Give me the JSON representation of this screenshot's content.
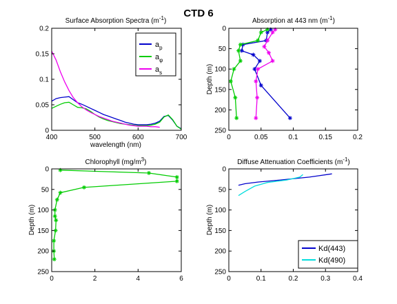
{
  "figure_title": "CTD 6",
  "chart_data": [
    {
      "type": "line",
      "title": "Surface Absorption Spectra (m⁻¹)",
      "xlabel": "wavelength (nm)",
      "ylabel": "",
      "xlim": [
        400,
        700
      ],
      "ylim": [
        0,
        0.2
      ],
      "x_ticks": [
        400,
        500,
        600,
        700
      ],
      "x_tick_labels": [
        "400",
        "500",
        "600",
        "700"
      ],
      "y_ticks": [
        0,
        0.05,
        0.1,
        0.15,
        0.2
      ],
      "y_tick_labels": [
        "0",
        "0.05",
        "0.1",
        "0.15",
        "0.2"
      ],
      "y_reversed": false,
      "legend_position": "top-right",
      "series": [
        {
          "name": "aₚ",
          "color": "#0000cc",
          "markers": false,
          "x": [
            400,
            410,
            420,
            430,
            440,
            450,
            460,
            470,
            480,
            490,
            500,
            510,
            520,
            530,
            540,
            550,
            560,
            570,
            580,
            590,
            600,
            610,
            620,
            630,
            640,
            650,
            660,
            670,
            680,
            690,
            700
          ],
          "y": [
            0.057,
            0.062,
            0.064,
            0.065,
            0.066,
            0.06,
            0.054,
            0.051,
            0.047,
            0.043,
            0.039,
            0.035,
            0.031,
            0.028,
            0.025,
            0.022,
            0.019,
            0.016,
            0.014,
            0.012,
            0.011,
            0.011,
            0.011,
            0.012,
            0.014,
            0.018,
            0.027,
            0.029,
            0.02,
            0.008,
            0.003
          ]
        },
        {
          "name": "aᵩ",
          "color": "#00cc00",
          "markers": false,
          "x": [
            400,
            410,
            420,
            430,
            440,
            450,
            460,
            470,
            480,
            490,
            500,
            510,
            520,
            530,
            540,
            550,
            560,
            570,
            580,
            590,
            600,
            610,
            620,
            630,
            640,
            650,
            660,
            670,
            680,
            690,
            700
          ],
          "y": [
            0.043,
            0.047,
            0.051,
            0.054,
            0.055,
            0.05,
            0.045,
            0.044,
            0.042,
            0.037,
            0.031,
            0.026,
            0.022,
            0.019,
            0.017,
            0.015,
            0.013,
            0.012,
            0.011,
            0.01,
            0.009,
            0.009,
            0.009,
            0.01,
            0.012,
            0.016,
            0.026,
            0.03,
            0.021,
            0.008,
            0.002
          ]
        },
        {
          "name": "aₛ",
          "color": "#ee00ee",
          "markers": false,
          "x": [
            400,
            410,
            420,
            430,
            440,
            450,
            460,
            470,
            480,
            490,
            500,
            510,
            520,
            530,
            540,
            550,
            560,
            570,
            580,
            590,
            600,
            610,
            620,
            630,
            640,
            650
          ],
          "y": [
            0.155,
            0.138,
            0.115,
            0.095,
            0.078,
            0.064,
            0.054,
            0.046,
            0.04,
            0.035,
            0.031,
            0.027,
            0.024,
            0.021,
            0.018,
            0.016,
            0.014,
            0.012,
            0.01,
            0.009,
            0.008,
            0.008,
            0.008,
            0.007,
            0.007,
            0.006
          ]
        }
      ]
    },
    {
      "type": "line",
      "title": "Absorption at 443 nm (m⁻¹)",
      "xlabel": "",
      "ylabel": "Depth (m)",
      "xlim": [
        0,
        0.2
      ],
      "ylim": [
        0,
        250
      ],
      "x_ticks": [
        0,
        0.05,
        0.1,
        0.15,
        0.2
      ],
      "x_tick_labels": [
        "0",
        "0.05",
        "0.1",
        "0.15",
        "0.2"
      ],
      "y_ticks": [
        0,
        50,
        100,
        150,
        200,
        250
      ],
      "y_tick_labels": [
        "0",
        "50",
        "100",
        "150",
        "200",
        "250"
      ],
      "y_reversed": true,
      "series": [
        {
          "color": "#0000cc",
          "markers": true,
          "x": [
            0.065,
            0.06,
            0.058,
            0.022,
            0.02,
            0.038,
            0.048,
            0.04,
            0.05,
            0.095
          ],
          "y": [
            3,
            10,
            30,
            40,
            55,
            65,
            80,
            100,
            140,
            220
          ]
        },
        {
          "color": "#00cc00",
          "markers": true,
          "x": [
            0.06,
            0.05,
            0.045,
            0.018,
            0.015,
            0.018,
            0.008,
            0.003,
            0.01,
            0.012
          ],
          "y": [
            3,
            10,
            30,
            40,
            55,
            80,
            100,
            130,
            170,
            220
          ]
        },
        {
          "color": "#ee00ee",
          "markers": true,
          "x": [
            0.072,
            0.068,
            0.06,
            0.055,
            0.062,
            0.068,
            0.045,
            0.042,
            0.044,
            0.042
          ],
          "y": [
            3,
            10,
            30,
            45,
            60,
            80,
            100,
            130,
            170,
            220
          ]
        }
      ]
    },
    {
      "type": "line",
      "title": "Chlorophyll (mg/m³)",
      "xlabel": "",
      "ylabel": "Depth (m)",
      "xlim": [
        0,
        6
      ],
      "ylim": [
        0,
        250
      ],
      "x_ticks": [
        0,
        2,
        4,
        6
      ],
      "x_tick_labels": [
        "0",
        "2",
        "4",
        "6"
      ],
      "y_ticks": [
        0,
        50,
        100,
        150,
        200,
        250
      ],
      "y_tick_labels": [
        "0",
        "50",
        "100",
        "150",
        "200",
        "250"
      ],
      "y_reversed": true,
      "series": [
        {
          "color": "#00cc00",
          "markers": true,
          "x": [
            0.4,
            4.5,
            5.8,
            5.8,
            1.5,
            0.4,
            0.25,
            0.15,
            0.15,
            0.2,
            0.18,
            0.1,
            0.1,
            0.12
          ],
          "y": [
            3,
            10,
            20,
            30,
            45,
            58,
            75,
            100,
            115,
            125,
            150,
            175,
            200,
            220
          ]
        }
      ]
    },
    {
      "type": "line",
      "title": "Diffuse Attenuation Coefficients (m⁻¹)",
      "xlabel": "",
      "ylabel": "Depth (m)",
      "xlim": [
        0,
        0.4
      ],
      "ylim": [
        0,
        250
      ],
      "x_ticks": [
        0,
        0.1,
        0.2,
        0.3,
        0.4
      ],
      "x_tick_labels": [
        "0",
        "0.1",
        "0.2",
        "0.3",
        "0.4"
      ],
      "y_ticks": [
        0,
        50,
        100,
        150,
        200,
        250
      ],
      "y_tick_labels": [
        "0",
        "50",
        "100",
        "150",
        "200",
        "250"
      ],
      "y_reversed": true,
      "legend_position": "bottom-right",
      "series": [
        {
          "name": "Kd(443)",
          "color": "#0000cc",
          "markers": false,
          "x": [
            0.32,
            0.25,
            0.16,
            0.09,
            0.05,
            0.03
          ],
          "y": [
            12,
            20,
            27,
            32,
            36,
            40
          ]
        },
        {
          "name": "Kd(490)",
          "color": "#00dddd",
          "markers": false,
          "x": [
            0.23,
            0.22,
            0.18,
            0.12,
            0.08,
            0.05,
            0.03
          ],
          "y": [
            14,
            20,
            27,
            33,
            42,
            55,
            65
          ]
        }
      ]
    }
  ]
}
